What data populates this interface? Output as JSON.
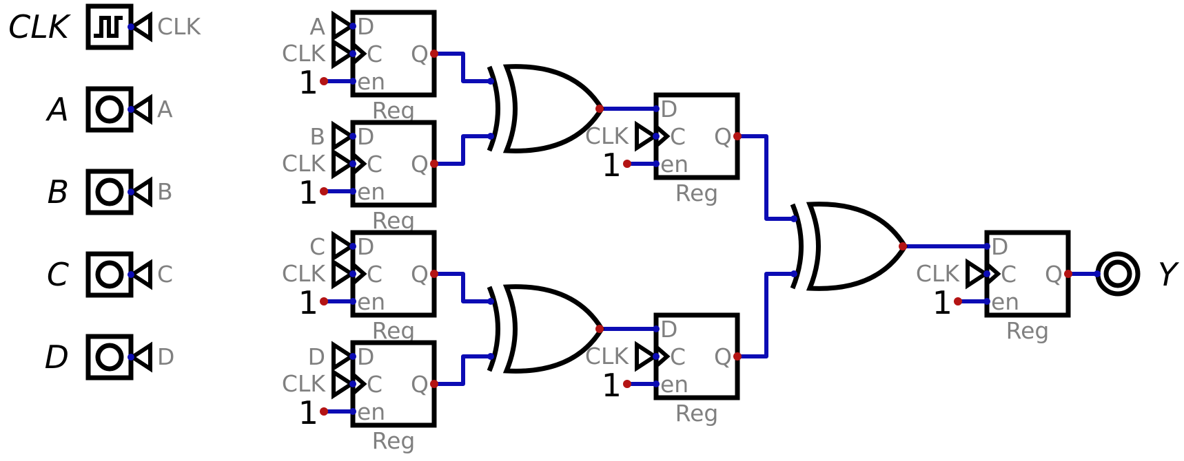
{
  "inputs": [
    {
      "label": "CLK",
      "net": "CLK",
      "kind": "clock"
    },
    {
      "label": "A",
      "net": "A",
      "kind": "input"
    },
    {
      "label": "B",
      "net": "B",
      "kind": "input"
    },
    {
      "label": "C",
      "net": "C",
      "kind": "input"
    },
    {
      "label": "D",
      "net": "D",
      "kind": "input"
    }
  ],
  "input_registers": [
    {
      "d_net": "A",
      "c_net": "CLK",
      "en_const": "1",
      "pin_d": "D",
      "pin_c": "C",
      "pin_en": "en",
      "pin_q": "Q",
      "name": "Reg"
    },
    {
      "d_net": "B",
      "c_net": "CLK",
      "en_const": "1",
      "pin_d": "D",
      "pin_c": "C",
      "pin_en": "en",
      "pin_q": "Q",
      "name": "Reg"
    },
    {
      "d_net": "C",
      "c_net": "CLK",
      "en_const": "1",
      "pin_d": "D",
      "pin_c": "C",
      "pin_en": "en",
      "pin_q": "Q",
      "name": "Reg"
    },
    {
      "d_net": "D",
      "c_net": "CLK",
      "en_const": "1",
      "pin_d": "D",
      "pin_c": "C",
      "pin_en": "en",
      "pin_q": "Q",
      "name": "Reg"
    }
  ],
  "middle_registers": [
    {
      "c_net": "CLK",
      "en_const": "1",
      "pin_d": "D",
      "pin_c": "C",
      "pin_en": "en",
      "pin_q": "Q",
      "name": "Reg"
    },
    {
      "c_net": "CLK",
      "en_const": "1",
      "pin_d": "D",
      "pin_c": "C",
      "pin_en": "en",
      "pin_q": "Q",
      "name": "Reg"
    }
  ],
  "output_register": {
    "c_net": "CLK",
    "en_const": "1",
    "pin_d": "D",
    "pin_c": "C",
    "pin_en": "en",
    "pin_q": "Q",
    "name": "Reg"
  },
  "gates": [
    {
      "type": "XOR"
    },
    {
      "type": "XOR"
    },
    {
      "type": "XOR"
    }
  ],
  "output": {
    "label": "Y"
  },
  "colors": {
    "wire": "#0c0cb4",
    "body": "#000000",
    "pin_text": "#808080",
    "output_dot": "#b41414"
  }
}
